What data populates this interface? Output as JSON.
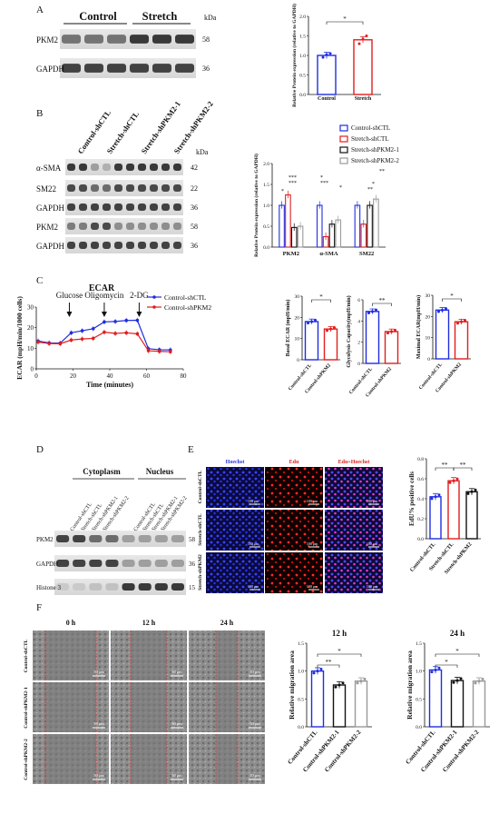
{
  "panels": {
    "A": {
      "letter": "A",
      "group_labels": [
        "Control",
        "Stretch"
      ],
      "unit": "kDa",
      "bands": [
        {
          "name": "PKM2",
          "kda": "58"
        },
        {
          "name": "GAPDH",
          "kda": "36"
        }
      ],
      "chart_data": {
        "type": "bar",
        "categories": [
          "Control",
          "Stretch"
        ],
        "values": [
          1.0,
          1.4
        ],
        "points": [
          [
            0.95,
            1.02,
            1.05
          ],
          [
            1.3,
            1.42,
            1.5
          ]
        ],
        "sig": [
          {
            "pair": [
              0,
              1
            ],
            "label": "*"
          }
        ],
        "ylabel": "Relative Protein expression (relative to GAPDH)",
        "ylim": [
          0,
          2.0
        ],
        "yticks": [
          "0.0",
          "0.5",
          "1.0",
          "1.5",
          "2.0"
        ],
        "colors": [
          "#1f2de0",
          "#e21d1d"
        ]
      }
    },
    "B": {
      "letter": "B",
      "lane_labels": [
        "Control-shCTL",
        "Stretch-shCTL",
        "Stretch-shPKM2-1",
        "Stretch-shPKM2-2"
      ],
      "unit": "kDa",
      "bands": [
        {
          "name": "α-SMA",
          "kda": "42"
        },
        {
          "name": "SM22",
          "kda": "22"
        },
        {
          "name": "GAPDH",
          "kda": "36"
        },
        {
          "name": "PKM2",
          "kda": "58"
        },
        {
          "name": "GAPDH",
          "kda": "36"
        }
      ],
      "chart_data": {
        "type": "bar",
        "categories": [
          "PKM2",
          "α-SMA",
          "SM22"
        ],
        "series": [
          {
            "name": "Control-shCTL",
            "values": [
              1.0,
              1.0,
              1.0
            ],
            "color": "#1f2de0"
          },
          {
            "name": "Stretch-shCTL",
            "values": [
              1.25,
              0.25,
              0.55
            ],
            "color": "#e21d1d"
          },
          {
            "name": "Stretch-shPKM2-1",
            "values": [
              0.47,
              0.55,
              1.0
            ],
            "color": "#111111"
          },
          {
            "name": "Stretch-shPKM2-2",
            "values": [
              0.5,
              0.65,
              1.15
            ],
            "color": "#9a9a9a"
          }
        ],
        "sig_labels": [
          "*",
          "***",
          "***",
          "***",
          "*",
          "*",
          "**",
          "*",
          "**"
        ],
        "ylabel": "Relative Protein expression (relative to GAPDH)",
        "ylim": [
          0,
          2.0
        ],
        "yticks": [
          "0.0",
          "0.5",
          "1.0",
          "1.5",
          "2.0"
        ],
        "legend_placement": "top-right"
      }
    },
    "C": {
      "letter": "C",
      "line_chart": {
        "type": "line",
        "title": "ECAR",
        "xlabel": "Time (minutes)",
        "ylabel": "ECAR (mpH/min/1000 cells)",
        "xlim": [
          0,
          80
        ],
        "ylim": [
          0,
          30
        ],
        "xticks": [
          "0",
          "20",
          "40",
          "60",
          "80"
        ],
        "yticks": [
          "0",
          "10",
          "20",
          "30"
        ],
        "annotations": [
          {
            "label": "Glucose",
            "x": 18
          },
          {
            "label": "Oligomycin",
            "x": 37
          },
          {
            "label": "2-DG",
            "x": 56
          }
        ],
        "x": [
          1,
          7,
          13,
          19,
          25,
          31,
          37,
          43,
          49,
          55,
          61,
          67,
          73
        ],
        "series": [
          {
            "name": "Control-shCTL",
            "color": "#1f2de0",
            "values": [
              13.5,
              12.6,
              12.5,
              17.5,
              18.5,
              19.5,
              22.8,
              23.0,
              23.5,
              23.6,
              9.8,
              9.3,
              9.2
            ]
          },
          {
            "name": "Control-shPKM2",
            "color": "#e21d1d",
            "values": [
              13.0,
              12.3,
              12.2,
              14.0,
              14.5,
              14.8,
              17.8,
              17.2,
              17.5,
              17.0,
              8.8,
              8.5,
              8.3
            ]
          }
        ],
        "legend_placement": "top-right"
      },
      "bar_charts": [
        {
          "type": "bar",
          "ylabel": "Basal ECAR (mpH/min)",
          "categories": [
            "Control-shCTL",
            "Control-shPKM2"
          ],
          "values": [
            18,
            14.5
          ],
          "ylim": [
            0,
            30
          ],
          "yticks": [
            "0",
            "10",
            "20",
            "30"
          ],
          "sig": "*",
          "colors": [
            "#1f2de0",
            "#e21d1d"
          ]
        },
        {
          "type": "bar",
          "ylabel": "Glycolysis Capacity(mpH/min)",
          "categories": [
            "Control-shCTL",
            "Control-shPKM2"
          ],
          "values": [
            4.9,
            3.0
          ],
          "ylim": [
            0,
            6
          ],
          "yticks": [
            "0",
            "2",
            "4",
            "6"
          ],
          "sig": "**",
          "colors": [
            "#1f2de0",
            "#e21d1d"
          ]
        },
        {
          "type": "bar",
          "ylabel": "Maximal ECAR(mpH/min)",
          "categories": [
            "Control-shCTL",
            "Control-shPKM2"
          ],
          "values": [
            23,
            17.5
          ],
          "ylim": [
            0,
            30
          ],
          "yticks": [
            "0",
            "10",
            "20",
            "30"
          ],
          "sig": "*",
          "colors": [
            "#1f2de0",
            "#e21d1d"
          ]
        }
      ]
    },
    "D": {
      "letter": "D",
      "groups": [
        "Cytoplasm",
        "Nucleus"
      ],
      "lane_labels": [
        "Control-shCTL",
        "Stretch-shCTL",
        "Stretch-shPKM2-1",
        "Stretch-shPKM2-2",
        "Control-shCTL",
        "Stretch-shCTL",
        "Stretch-shPKM2-1",
        "Stretch-shPKM2-2"
      ],
      "bands": [
        {
          "name": "PKM2",
          "kda": "58"
        },
        {
          "name": "GAPDH",
          "kda": "36"
        },
        {
          "name": "Histone 3",
          "kda": "15"
        }
      ]
    },
    "E": {
      "letter": "E",
      "columns": [
        "Hoechst",
        "Edu",
        "Edu+Hoechst"
      ],
      "rows": [
        "Control-shCTL",
        "Stretch-shCTL",
        "Stretch-shPKM2"
      ],
      "scalebar": "100 μm",
      "chart_data": {
        "type": "bar",
        "categories": [
          "Control-shCTL",
          "Stretch-shCTL",
          "Stretch-shPKM2"
        ],
        "values": [
          0.42,
          0.58,
          0.47
        ],
        "ylabel": "EdU% positive cells",
        "ylim": [
          0,
          0.8
        ],
        "yticks": [
          "0.0",
          "0.2",
          "0.4",
          "0.6",
          "0.8"
        ],
        "sig": [
          "**",
          "**"
        ],
        "colors": [
          "#1f2de0",
          "#e21d1d",
          "#111111"
        ]
      }
    },
    "F": {
      "letter": "F",
      "columns": [
        "0 h",
        "12 h",
        "24 h"
      ],
      "rows": [
        "Control-shCTL",
        "Control-shPKM2-1",
        "Control-shPKM2-2"
      ],
      "scalebar": "50 μm",
      "bar_charts": [
        {
          "type": "bar",
          "title": "12 h",
          "ylabel": "Relative migration area",
          "categories": [
            "Control-shCTL",
            "Control-shPKM2-1",
            "Control-shPKM2-2"
          ],
          "values": [
            1.0,
            0.75,
            0.82
          ],
          "ylim": [
            0,
            1.5
          ],
          "yticks": [
            "0.0",
            "0.5",
            "1.0",
            "1.5"
          ],
          "sig": [
            "**",
            "*"
          ],
          "colors": [
            "#1f2de0",
            "#111111",
            "#9a9a9a"
          ]
        },
        {
          "type": "bar",
          "title": "24 h",
          "ylabel": "Relative migration area",
          "categories": [
            "Control-shCTL",
            "Control-shPKM2-1",
            "Control-shPKM2-2"
          ],
          "values": [
            1.02,
            0.83,
            0.82
          ],
          "ylim": [
            0,
            1.5
          ],
          "yticks": [
            "0.0",
            "0.5",
            "1.0",
            "1.5"
          ],
          "sig": [
            "*",
            "*"
          ],
          "colors": [
            "#1f2de0",
            "#111111",
            "#9a9a9a"
          ]
        }
      ]
    }
  }
}
